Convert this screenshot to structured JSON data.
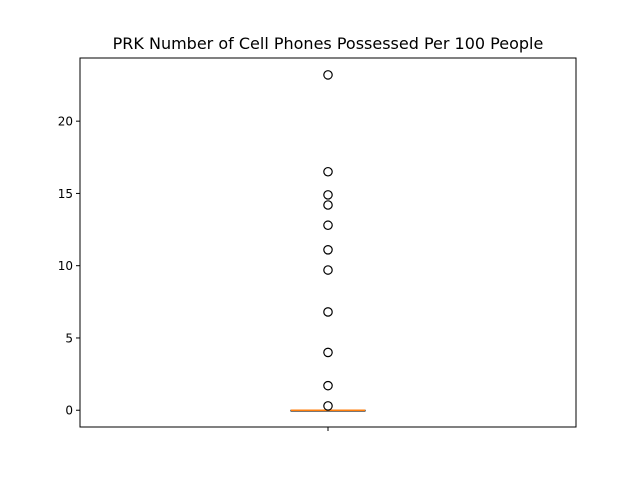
{
  "chart_data": {
    "type": "box",
    "title": "PRK Number of Cell Phones Possessed Per 100 People",
    "xlabel": "",
    "ylabel": "",
    "ylim": [
      -1.16,
      24.37
    ],
    "yticks": [
      0,
      5,
      10,
      15,
      20
    ],
    "ytick_labels": [
      "0",
      "5",
      "10",
      "15",
      "20"
    ],
    "xticks": [
      1
    ],
    "xtick_labels": [
      ""
    ],
    "grid": false,
    "box": {
      "min": 0,
      "q1": 0,
      "median": 0,
      "q3": 0,
      "max": 0
    },
    "outliers": [
      0.3,
      1.7,
      4.0,
      6.8,
      9.7,
      11.1,
      12.8,
      14.2,
      14.9,
      16.5,
      23.2
    ],
    "colors": {
      "box": "#000000",
      "median": "#ff7f0e",
      "outlier_edge": "#000000"
    }
  }
}
